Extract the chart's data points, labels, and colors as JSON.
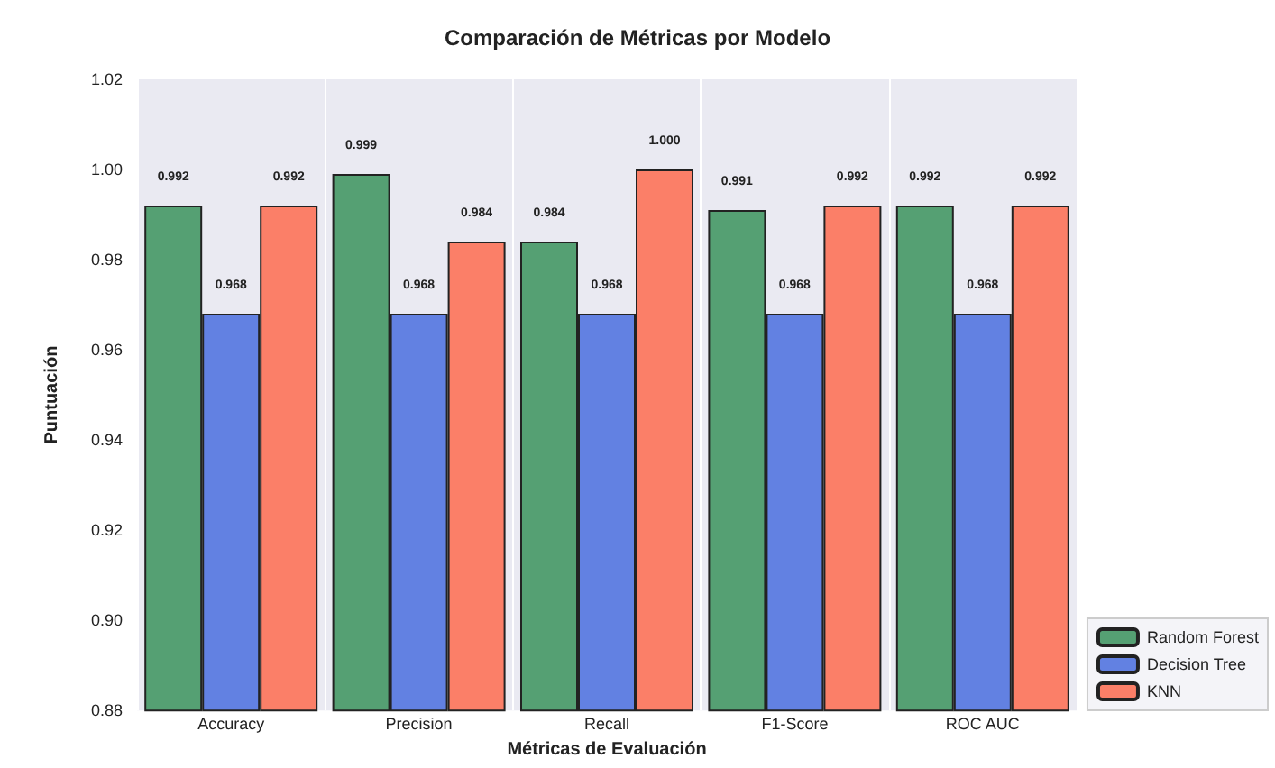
{
  "chart_data": {
    "type": "bar",
    "title": "Comparación de Métricas por Modelo",
    "xlabel": "Métricas de Evaluación",
    "ylabel": "Puntuación",
    "categories": [
      "Accuracy",
      "Precision",
      "Recall",
      "F1-Score",
      "ROC AUC"
    ],
    "series": [
      {
        "name": "Random Forest",
        "color": "#55a073",
        "values": [
          0.992,
          0.999,
          0.984,
          0.991,
          0.992
        ],
        "value_labels": [
          "0.992",
          "0.999",
          "0.984",
          "0.991",
          "0.992"
        ]
      },
      {
        "name": "Decision Tree",
        "color": "#6281e2",
        "values": [
          0.968,
          0.968,
          0.968,
          0.968,
          0.968
        ],
        "value_labels": [
          "0.968",
          "0.968",
          "0.968",
          "0.968",
          "0.968"
        ]
      },
      {
        "name": "KNN",
        "color": "#fb7f68",
        "values": [
          0.992,
          0.984,
          1.0,
          0.992,
          0.992
        ],
        "value_labels": [
          "0.992",
          "0.984",
          "1.000",
          "0.992",
          "0.992"
        ]
      }
    ],
    "ylim": [
      0.88,
      1.02
    ],
    "yticks": [
      0.88,
      {
        "value": 0.9,
        "label": "0.90"
      },
      0.92,
      0.94,
      0.96,
      0.98,
      {
        "value": 1,
        "label": "1.00"
      },
      1.02
    ],
    "grid": "x",
    "legend": "bottom right"
  }
}
